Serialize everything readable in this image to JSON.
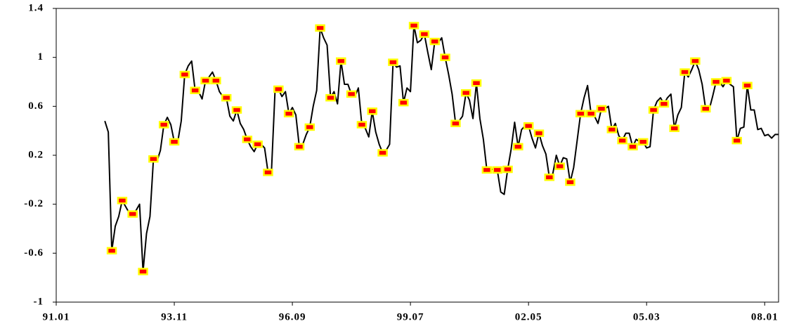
{
  "chart_data": {
    "type": "line",
    "xlim": [
      "91.01",
      "08.05"
    ],
    "xticks": [
      "91.01",
      "93.11",
      "96.09",
      "99.07",
      "02.05",
      "05.03",
      "08.01"
    ],
    "ylim": [
      -1,
      1.4
    ],
    "yticks": [
      1.4,
      1,
      0.6,
      0.2,
      -0.2,
      -0.6,
      -1
    ],
    "series": [
      {
        "color": "#000000",
        "marker": false,
        "x": [
          "92.03",
          "92.04",
          "92.05",
          "92.06",
          "92.07",
          "92.08",
          "92.09",
          "92.10",
          "92.11",
          "92.12",
          "93.01",
          "93.02",
          "93.03",
          "93.04",
          "93.05",
          "93.06",
          "93.07",
          "93.08",
          "93.09",
          "93.10",
          "93.11",
          "93.12",
          "94.01",
          "94.02",
          "94.03",
          "94.04",
          "94.05",
          "94.06",
          "94.07",
          "94.08",
          "94.09",
          "94.10",
          "94.11",
          "94.12",
          "95.01",
          "95.02",
          "95.03",
          "95.04",
          "95.05",
          "95.06",
          "95.07",
          "95.08",
          "95.09",
          "95.10",
          "95.11",
          "95.12",
          "96.01",
          "96.02",
          "96.03",
          "96.04",
          "96.05",
          "96.06",
          "96.07",
          "96.08",
          "96.09",
          "96.10",
          "96.11",
          "96.12",
          "97.01",
          "97.02",
          "97.03",
          "97.04",
          "97.05",
          "97.06",
          "97.07",
          "97.08",
          "97.09",
          "97.10",
          "97.11",
          "97.12",
          "98.01",
          "98.02",
          "98.03",
          "98.04",
          "98.05",
          "98.06",
          "98.07",
          "98.08",
          "98.09",
          "98.10",
          "98.11",
          "98.12",
          "99.01",
          "99.02",
          "99.03",
          "99.04",
          "99.05",
          "99.06",
          "99.07",
          "99.08",
          "99.09",
          "99.10",
          "99.11",
          "99.12",
          "00.01",
          "00.02",
          "00.03",
          "00.04",
          "00.05",
          "00.06",
          "00.07",
          "00.08",
          "00.09",
          "00.10",
          "00.11",
          "00.12",
          "01.01",
          "01.02",
          "01.03",
          "01.04",
          "01.05",
          "01.06",
          "01.07",
          "01.08",
          "01.09",
          "01.10",
          "01.11",
          "01.12",
          "02.01",
          "02.02",
          "02.03",
          "02.04",
          "02.05",
          "02.06",
          "02.07",
          "02.08",
          "02.09",
          "02.10",
          "02.11",
          "02.12",
          "03.01",
          "03.02",
          "03.03",
          "03.04",
          "03.05",
          "03.06",
          "03.07",
          "03.08",
          "03.09",
          "03.10",
          "03.11",
          "03.12",
          "04.01",
          "04.02",
          "04.03",
          "04.04",
          "04.05",
          "04.06",
          "04.07",
          "04.08",
          "04.09",
          "04.10",
          "04.11",
          "04.12",
          "05.01",
          "05.02",
          "05.03",
          "05.04",
          "05.05",
          "05.06",
          "05.07",
          "05.08",
          "05.09",
          "05.10",
          "05.11",
          "05.12",
          "06.01",
          "06.02",
          "06.03",
          "06.04",
          "06.05",
          "06.06",
          "06.07",
          "06.08",
          "06.09",
          "06.10",
          "06.11",
          "06.12",
          "07.01",
          "07.02",
          "07.03",
          "07.04",
          "07.05",
          "07.06",
          "07.07",
          "07.08",
          "07.09",
          "07.10",
          "07.11",
          "07.12",
          "08.01",
          "08.02",
          "08.03",
          "08.04",
          "08.05"
        ],
        "values": [
          0.48,
          0.39,
          -0.58,
          -0.38,
          -0.3,
          -0.17,
          -0.22,
          -0.27,
          -0.28,
          -0.25,
          -0.2,
          -0.75,
          -0.44,
          -0.3,
          0.17,
          0.15,
          0.24,
          0.45,
          0.51,
          0.45,
          0.31,
          0.31,
          0.48,
          0.86,
          0.93,
          0.97,
          0.73,
          0.72,
          0.66,
          0.81,
          0.84,
          0.88,
          0.81,
          0.72,
          0.68,
          0.67,
          0.52,
          0.48,
          0.57,
          0.46,
          0.41,
          0.33,
          0.27,
          0.23,
          0.29,
          0.29,
          0.26,
          0.06,
          0.08,
          0.72,
          0.74,
          0.68,
          0.72,
          0.54,
          0.59,
          0.53,
          0.27,
          0.29,
          0.37,
          0.43,
          0.6,
          0.73,
          1.24,
          1.16,
          1.1,
          0.67,
          0.72,
          0.62,
          0.97,
          0.78,
          0.78,
          0.7,
          0.68,
          0.75,
          0.45,
          0.42,
          0.35,
          0.56,
          0.39,
          0.29,
          0.22,
          0.24,
          0.29,
          0.96,
          0.92,
          0.93,
          0.63,
          0.75,
          0.72,
          1.26,
          1.12,
          1.14,
          1.19,
          1.04,
          0.9,
          1.13,
          1.12,
          1.16,
          1.0,
          0.86,
          0.7,
          0.46,
          0.48,
          0.52,
          0.71,
          0.65,
          0.5,
          0.79,
          0.5,
          0.33,
          0.08,
          0.09,
          0.08,
          0.08,
          -0.1,
          -0.12,
          0.085,
          0.25,
          0.47,
          0.27,
          0.41,
          0.44,
          0.44,
          0.34,
          0.26,
          0.38,
          0.28,
          0.21,
          0.02,
          0.05,
          0.2,
          0.11,
          0.18,
          0.17,
          -0.02,
          0.1,
          0.32,
          0.54,
          0.67,
          0.77,
          0.54,
          0.52,
          0.46,
          0.58,
          0.58,
          0.6,
          0.41,
          0.46,
          0.36,
          0.32,
          0.38,
          0.38,
          0.27,
          0.33,
          0.31,
          0.31,
          0.26,
          0.27,
          0.57,
          0.64,
          0.67,
          0.62,
          0.67,
          0.7,
          0.42,
          0.53,
          0.59,
          0.88,
          0.84,
          0.9,
          0.97,
          0.9,
          0.78,
          0.58,
          0.57,
          0.68,
          0.8,
          0.8,
          0.76,
          0.81,
          0.78,
          0.76,
          0.32,
          0.42,
          0.43,
          0.77,
          0.57,
          0.57,
          0.41,
          0.42,
          0.36,
          0.37,
          0.34,
          0.37,
          0.37
        ]
      },
      {
        "color": "#ff0000",
        "edge": "#ffff00",
        "marker": true,
        "x": [
          "92.05",
          "92.08",
          "92.11",
          "93.02",
          "93.05",
          "93.08",
          "93.11",
          "94.02",
          "94.05",
          "94.08",
          "94.11",
          "95.02",
          "95.05",
          "95.08",
          "95.11",
          "96.02",
          "96.05",
          "96.08",
          "96.11",
          "97.02",
          "97.05",
          "97.08",
          "97.11",
          "98.02",
          "98.05",
          "98.08",
          "98.11",
          "99.02",
          "99.05",
          "99.08",
          "99.11",
          "00.02",
          "00.05",
          "00.08",
          "00.11",
          "01.02",
          "01.05",
          "01.08",
          "01.11",
          "02.02",
          "02.05",
          "02.08",
          "02.11",
          "03.02",
          "03.05",
          "03.08",
          "03.11",
          "04.02",
          "04.05",
          "04.08",
          "04.11",
          "05.02",
          "05.05",
          "05.08",
          "05.11",
          "06.02",
          "06.05",
          "06.08",
          "06.11",
          "07.02",
          "07.05",
          "07.08"
        ],
        "values": [
          -0.58,
          -0.17,
          -0.28,
          -0.75,
          0.17,
          0.45,
          0.31,
          0.86,
          0.73,
          0.81,
          0.81,
          0.67,
          0.57,
          0.33,
          0.29,
          0.06,
          0.74,
          0.54,
          0.27,
          0.43,
          1.24,
          0.67,
          0.97,
          0.7,
          0.45,
          0.56,
          0.22,
          0.96,
          0.63,
          1.26,
          1.19,
          1.13,
          1.0,
          0.46,
          0.71,
          0.79,
          0.08,
          0.08,
          0.085,
          0.27,
          0.44,
          0.38,
          0.02,
          0.11,
          -0.02,
          0.54,
          0.54,
          0.58,
          0.41,
          0.32,
          0.27,
          0.31,
          0.57,
          0.62,
          0.42,
          0.88,
          0.97,
          0.58,
          0.8,
          0.81,
          0.32,
          0.77
        ]
      }
    ]
  }
}
